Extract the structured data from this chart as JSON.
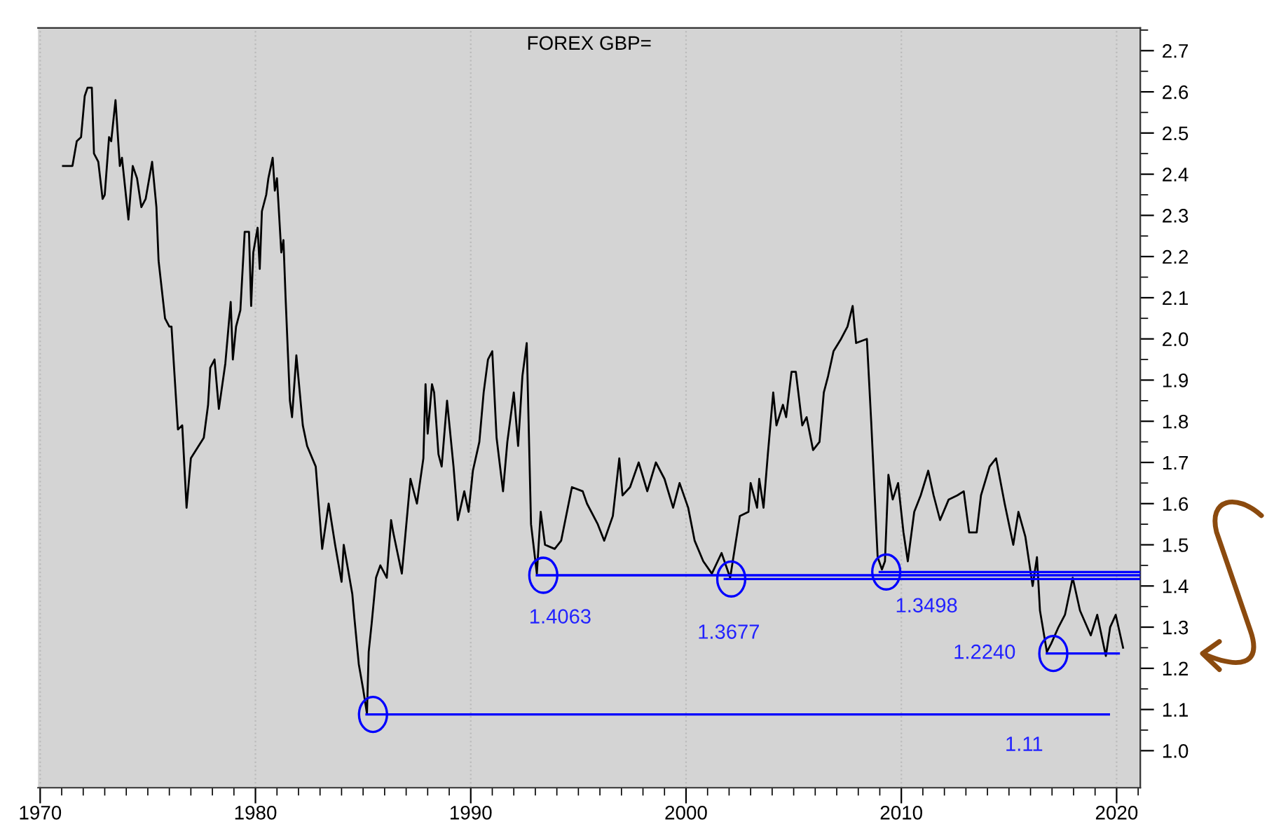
{
  "chart_data": {
    "type": "line",
    "title": "FOREX GBP=",
    "xlim": [
      1969.9,
      2021.1
    ],
    "ylim": [
      0.91,
      2.755
    ],
    "xticks": [
      1970,
      1980,
      1990,
      2000,
      2010,
      2020
    ],
    "yticks": [
      {
        "value": 1.0,
        "label": "1.0"
      },
      1.1,
      1.2,
      1.3,
      1.4,
      1.5,
      1.6,
      1.7,
      1.8,
      1.9,
      {
        "value": 2.0,
        "label": "2.0"
      },
      2.1,
      2.2,
      2.3,
      2.4,
      2.5,
      2.6,
      2.7
    ],
    "grid": "x",
    "marker": "none",
    "line_style": "solid",
    "series": [
      {
        "color": "#000000",
        "x": [
          1971.06,
          1971.5,
          1971.7,
          1971.9,
          1972.07,
          1972.2,
          1972.4,
          1972.5,
          1972.7,
          1972.9,
          1973.0,
          1973.2,
          1973.3,
          1973.5,
          1973.7,
          1973.8,
          1974.1,
          1974.3,
          1974.5,
          1974.7,
          1974.9,
          1975.2,
          1975.4,
          1975.5,
          1975.8,
          1976.0,
          1976.1,
          1976.4,
          1976.6,
          1976.8,
          1977.0,
          1977.6,
          1977.8,
          1977.9,
          1978.1,
          1978.3,
          1978.6,
          1978.85,
          1978.95,
          1979.1,
          1979.3,
          1979.5,
          1979.7,
          1979.8,
          1979.9,
          1980.1,
          1980.2,
          1980.3,
          1980.5,
          1980.6,
          1980.8,
          1980.9,
          1981.0,
          1981.2,
          1981.3,
          1981.4,
          1981.6,
          1981.7,
          1981.9,
          1982.2,
          1982.4,
          1982.8,
          1983.1,
          1983.4,
          1983.7,
          1984.0,
          1984.1,
          1984.5,
          1984.6,
          1984.8,
          1985.0,
          1985.18,
          1985.26,
          1985.4,
          1985.6,
          1985.8,
          1986.1,
          1986.3,
          1986.4,
          1986.8,
          1987.2,
          1987.5,
          1987.8,
          1987.9,
          1988.0,
          1988.2,
          1988.3,
          1988.5,
          1988.65,
          1988.9,
          1989.2,
          1989.4,
          1989.7,
          1989.9,
          1990.1,
          1990.4,
          1990.6,
          1990.8,
          1991.0,
          1991.2,
          1991.5,
          1991.7,
          1992.0,
          1992.2,
          1992.4,
          1992.6,
          1992.8,
          1993.07,
          1993.25,
          1993.45,
          1993.9,
          1994.2,
          1994.7,
          1995.2,
          1995.4,
          1995.9,
          1996.2,
          1996.6,
          1996.9,
          1997.05,
          1997.4,
          1997.8,
          1998.2,
          1998.6,
          1999.0,
          1999.4,
          1999.7,
          2000.1,
          2000.4,
          2000.8,
          2001.2,
          2001.65,
          2002.05,
          2002.5,
          2002.9,
          2003.0,
          2003.3,
          2003.4,
          2003.6,
          2003.8,
          2004.05,
          2004.2,
          2004.5,
          2004.65,
          2004.9,
          2005.1,
          2005.4,
          2005.6,
          2005.9,
          2006.2,
          2006.4,
          2006.6,
          2006.85,
          2007.2,
          2007.5,
          2007.74,
          2007.9,
          2008.4,
          2008.6,
          2008.9,
          2009.1,
          2009.24,
          2009.4,
          2009.6,
          2009.85,
          2010.1,
          2010.3,
          2010.6,
          2010.9,
          2011.25,
          2011.5,
          2011.8,
          2012.2,
          2012.6,
          2012.9,
          2013.15,
          2013.5,
          2013.7,
          2014.1,
          2014.4,
          2014.8,
          2015.2,
          2015.44,
          2015.76,
          2016.1,
          2016.3,
          2016.44,
          2016.76,
          2016.96,
          2017.3,
          2017.6,
          2017.96,
          2018.3,
          2018.8,
          2019.1,
          2019.5,
          2019.7,
          2019.96,
          2020.3
        ],
        "values": [
          2.42,
          2.42,
          2.48,
          2.49,
          2.59,
          2.61,
          2.61,
          2.45,
          2.43,
          2.34,
          2.35,
          2.49,
          2.48,
          2.58,
          2.42,
          2.44,
          2.29,
          2.42,
          2.39,
          2.32,
          2.34,
          2.43,
          2.32,
          2.19,
          2.05,
          2.03,
          2.03,
          1.78,
          1.79,
          1.59,
          1.71,
          1.76,
          1.84,
          1.93,
          1.95,
          1.83,
          1.94,
          2.09,
          1.95,
          2.03,
          2.07,
          2.26,
          2.26,
          2.08,
          2.21,
          2.27,
          2.17,
          2.31,
          2.35,
          2.39,
          2.44,
          2.36,
          2.39,
          2.21,
          2.24,
          2.1,
          1.85,
          1.81,
          1.96,
          1.79,
          1.74,
          1.69,
          1.49,
          1.6,
          1.5,
          1.41,
          1.5,
          1.38,
          1.32,
          1.21,
          1.15,
          1.09,
          1.24,
          1.31,
          1.42,
          1.45,
          1.42,
          1.56,
          1.53,
          1.43,
          1.66,
          1.6,
          1.71,
          1.89,
          1.77,
          1.89,
          1.87,
          1.72,
          1.69,
          1.85,
          1.69,
          1.56,
          1.63,
          1.58,
          1.68,
          1.75,
          1.87,
          1.95,
          1.97,
          1.76,
          1.63,
          1.75,
          1.87,
          1.74,
          1.91,
          1.99,
          1.55,
          1.43,
          1.58,
          1.5,
          1.49,
          1.51,
          1.64,
          1.63,
          1.6,
          1.55,
          1.51,
          1.57,
          1.71,
          1.62,
          1.64,
          1.7,
          1.63,
          1.7,
          1.66,
          1.59,
          1.65,
          1.59,
          1.51,
          1.46,
          1.43,
          1.48,
          1.42,
          1.57,
          1.58,
          1.65,
          1.59,
          1.66,
          1.59,
          1.72,
          1.87,
          1.79,
          1.84,
          1.81,
          1.92,
          1.92,
          1.79,
          1.81,
          1.73,
          1.75,
          1.87,
          1.91,
          1.97,
          2.0,
          2.03,
          2.08,
          1.99,
          2.0,
          1.8,
          1.47,
          1.44,
          1.46,
          1.67,
          1.61,
          1.65,
          1.53,
          1.46,
          1.58,
          1.62,
          1.68,
          1.62,
          1.56,
          1.61,
          1.62,
          1.63,
          1.53,
          1.53,
          1.62,
          1.69,
          1.71,
          1.6,
          1.5,
          1.58,
          1.52,
          1.4,
          1.47,
          1.34,
          1.24,
          1.26,
          1.3,
          1.33,
          1.42,
          1.34,
          1.28,
          1.33,
          1.23,
          1.3,
          1.33,
          1.25
        ]
      },
      {
        "color": "#0000ff",
        "x": [
          1993.07,
          2021.1
        ],
        "values": [
          1.426,
          1.426
        ]
      },
      {
        "color": "#0000ff",
        "x": [
          2001.8,
          2021.1
        ],
        "values": [
          1.417,
          1.417
        ]
      },
      {
        "color": "#0000ff",
        "x": [
          2009.0,
          2021.1
        ],
        "values": [
          1.434,
          1.434
        ]
      },
      {
        "color": "#0000ff",
        "x": [
          2016.76,
          2020.1
        ],
        "values": [
          1.236,
          1.236
        ]
      },
      {
        "color": "#0000ff",
        "x": [
          1985.16,
          2019.64
        ],
        "values": [
          1.088,
          1.088
        ]
      }
    ],
    "annotations": [
      {
        "text": "1.4063",
        "x": 1993.07,
        "y": 1.426
      },
      {
        "text": "1.3677",
        "x": 2001.8,
        "y": 1.417
      },
      {
        "text": "1.3498",
        "x": 2009.0,
        "y": 1.434
      },
      {
        "text": "1.2240",
        "x": 2016.76,
        "y": 1.236
      },
      {
        "text": "1.11",
        "x": 2015.7,
        "y": 1.088
      }
    ]
  }
}
